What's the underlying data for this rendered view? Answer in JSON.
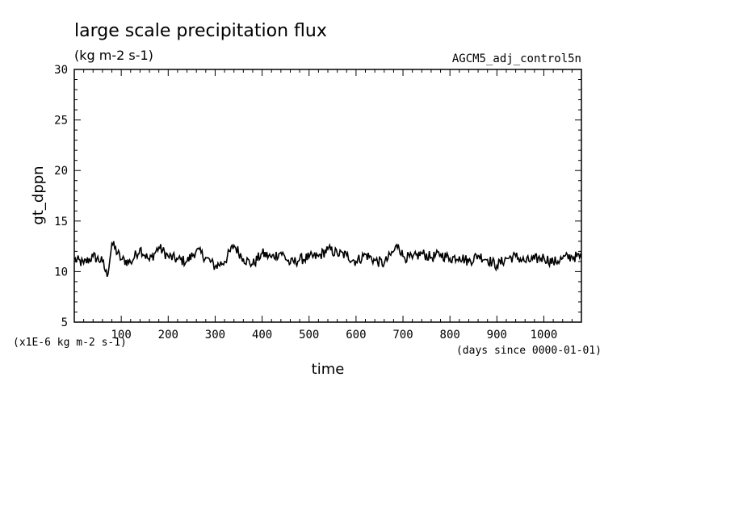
{
  "chart_data": {
    "type": "line",
    "title": "large scale precipitation flux",
    "subtitle": "(kg m-2 s-1)",
    "run_label": "AGCM5_adj_control5n",
    "xlabel": "time",
    "x_unit_label": "(days since 0000-01-01)",
    "ylabel": "gt_dppn",
    "y_scale_label": "(x1E-6 kg m-2 s-1)",
    "xlim": [
      0,
      1080
    ],
    "ylim": [
      5,
      30
    ],
    "x_ticks": [
      100,
      200,
      300,
      400,
      500,
      600,
      700,
      800,
      900,
      1000
    ],
    "y_ticks": [
      5,
      10,
      15,
      20,
      25,
      30
    ],
    "grid": false,
    "line_color": "#000000",
    "series": [
      {
        "x": [
          0,
          20,
          40,
          60,
          70,
          80,
          100,
          120,
          140,
          160,
          180,
          200,
          220,
          240,
          260,
          280,
          300,
          320,
          340,
          360,
          380,
          400,
          420,
          440,
          460,
          480,
          500,
          520,
          540,
          560,
          580,
          600,
          620,
          640,
          660,
          680,
          690,
          700,
          720,
          740,
          760,
          780,
          800,
          820,
          840,
          860,
          880,
          900,
          920,
          940,
          960,
          980,
          1000,
          1020,
          1040,
          1060,
          1080
        ],
        "values": [
          11.2,
          10.8,
          11.5,
          11.0,
          9.5,
          12.8,
          11.2,
          10.9,
          12.3,
          11.1,
          12.4,
          11.5,
          11.2,
          11.0,
          12.1,
          11.4,
          10.5,
          11.0,
          12.6,
          11.3,
          10.7,
          11.8,
          11.4,
          11.9,
          10.8,
          11.2,
          11.4,
          11.5,
          12.2,
          11.8,
          11.6,
          11.0,
          11.7,
          11.1,
          10.8,
          12.0,
          12.7,
          11.5,
          11.3,
          11.8,
          11.4,
          11.7,
          11.3,
          11.5,
          11.0,
          11.6,
          11.2,
          10.6,
          11.3,
          11.5,
          11.0,
          11.2,
          11.4,
          10.9,
          11.3,
          11.5,
          11.4
        ]
      }
    ]
  }
}
